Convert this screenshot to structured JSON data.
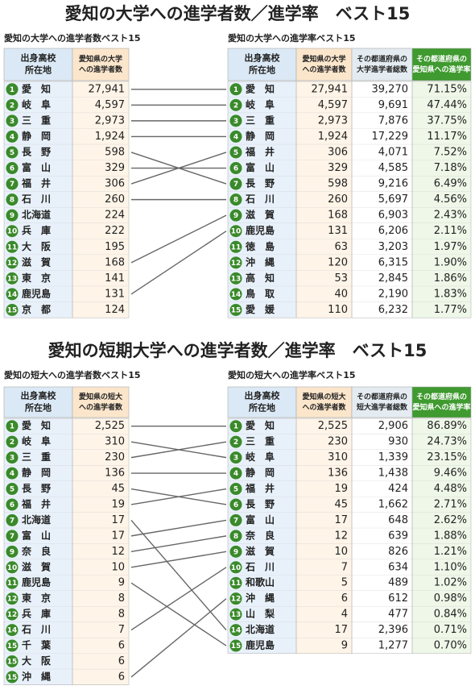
{
  "sections": [
    {
      "title": "愛知の大学への進学者数／進学率　ベスト15",
      "left": {
        "caption": "愛知の大学への進学者数ベスト15",
        "headers": [
          [
            "出身高校",
            "所在地"
          ],
          [
            "愛知県の大学",
            "への進学者数"
          ]
        ],
        "rows": [
          [
            "1",
            "愛　知",
            "27,941"
          ],
          [
            "2",
            "岐　阜",
            "4,597"
          ],
          [
            "3",
            "三　重",
            "2,973"
          ],
          [
            "4",
            "静　岡",
            "1,924"
          ],
          [
            "5",
            "長　野",
            "598"
          ],
          [
            "6",
            "富　山",
            "329"
          ],
          [
            "7",
            "福　井",
            "306"
          ],
          [
            "8",
            "石　川",
            "260"
          ],
          [
            "9",
            "北海道",
            "224"
          ],
          [
            "10",
            "兵　庫",
            "222"
          ],
          [
            "11",
            "大　阪",
            "195"
          ],
          [
            "12",
            "滋　賀",
            "168"
          ],
          [
            "13",
            "東　京",
            "141"
          ],
          [
            "14",
            "鹿児島",
            "131"
          ],
          [
            "15",
            "京　都",
            "124"
          ]
        ]
      },
      "right": {
        "caption": "愛知の大学への進学率ベスト15",
        "headers": [
          [
            "出身高校",
            "所在地"
          ],
          [
            "愛知県の大学",
            "への進学者数"
          ],
          [
            "その都道府県の",
            "大学進学者総数"
          ],
          [
            "その都道府県の",
            "愛知県への進学率"
          ]
        ],
        "rows": [
          [
            "1",
            "愛　知",
            "27,941",
            "39,270",
            "71.15%"
          ],
          [
            "2",
            "岐　阜",
            "4,597",
            "9,691",
            "47.44%"
          ],
          [
            "3",
            "三　重",
            "2,973",
            "7,876",
            "37.75%"
          ],
          [
            "4",
            "静　岡",
            "1,924",
            "17,229",
            "11.17%"
          ],
          [
            "5",
            "福　井",
            "306",
            "4,071",
            "7.52%"
          ],
          [
            "6",
            "富　山",
            "329",
            "4,585",
            "7.18%"
          ],
          [
            "7",
            "長　野",
            "598",
            "9,216",
            "6.49%"
          ],
          [
            "8",
            "石　川",
            "260",
            "5,697",
            "4.56%"
          ],
          [
            "9",
            "滋　賀",
            "168",
            "6,903",
            "2.43%"
          ],
          [
            "10",
            "鹿児島",
            "131",
            "6,206",
            "2.11%"
          ],
          [
            "11",
            "徳　島",
            "63",
            "3,203",
            "1.97%"
          ],
          [
            "12",
            "沖　縄",
            "120",
            "6,315",
            "1.90%"
          ],
          [
            "13",
            "高　知",
            "53",
            "2,845",
            "1.86%"
          ],
          [
            "14",
            "鳥　取",
            "40",
            "2,190",
            "1.83%"
          ],
          [
            "15",
            "愛　媛",
            "110",
            "6,232",
            "1.77%"
          ]
        ]
      }
    },
    {
      "title": "愛知の短期大学への進学者数／進学率　ベスト15",
      "left": {
        "caption": "愛知の短大への進学者数ベスト15",
        "headers": [
          [
            "出身高校",
            "所在地"
          ],
          [
            "愛知県の短大",
            "への進学者数"
          ]
        ],
        "rows": [
          [
            "1",
            "愛　知",
            "2,525"
          ],
          [
            "2",
            "岐　阜",
            "310"
          ],
          [
            "3",
            "三　重",
            "230"
          ],
          [
            "4",
            "静　岡",
            "136"
          ],
          [
            "5",
            "長　野",
            "45"
          ],
          [
            "6",
            "福　井",
            "19"
          ],
          [
            "7",
            "北海道",
            "17"
          ],
          [
            "7",
            "富　山",
            "17"
          ],
          [
            "9",
            "奈　良",
            "12"
          ],
          [
            "10",
            "滋　賀",
            "10"
          ],
          [
            "11",
            "鹿児島",
            "9"
          ],
          [
            "12",
            "東　京",
            "8"
          ],
          [
            "12",
            "兵　庫",
            "8"
          ],
          [
            "14",
            "石　川",
            "7"
          ],
          [
            "15",
            "千　葉",
            "6"
          ],
          [
            "15",
            "大　阪",
            "6"
          ],
          [
            "15",
            "沖　縄",
            "6"
          ]
        ]
      },
      "right": {
        "caption": "愛知の短大への進学率ベスト15",
        "headers": [
          [
            "出身高校",
            "所在地"
          ],
          [
            "愛知県の短大",
            "への進学者数"
          ],
          [
            "その都道府県の",
            "短大進学者総数"
          ],
          [
            "その都道府県の",
            "愛知県への進学率"
          ]
        ],
        "rows": [
          [
            "1",
            "愛　知",
            "2,525",
            "2,906",
            "86.89%"
          ],
          [
            "2",
            "三　重",
            "230",
            "930",
            "24.73%"
          ],
          [
            "3",
            "岐　阜",
            "310",
            "1,339",
            "23.15%"
          ],
          [
            "4",
            "静　岡",
            "136",
            "1,438",
            "9.46%"
          ],
          [
            "5",
            "福　井",
            "19",
            "424",
            "4.48%"
          ],
          [
            "6",
            "長　野",
            "45",
            "1,662",
            "2.71%"
          ],
          [
            "7",
            "富　山",
            "17",
            "648",
            "2.62%"
          ],
          [
            "8",
            "奈　良",
            "12",
            "639",
            "1.88%"
          ],
          [
            "9",
            "滋　賀",
            "10",
            "826",
            "1.21%"
          ],
          [
            "10",
            "石　川",
            "7",
            "634",
            "1.10%"
          ],
          [
            "11",
            "和歌山",
            "5",
            "489",
            "1.02%"
          ],
          [
            "12",
            "沖　縄",
            "6",
            "612",
            "0.98%"
          ],
          [
            "13",
            "山　梨",
            "4",
            "477",
            "0.84%"
          ],
          [
            "14",
            "北海道",
            "17",
            "2,396",
            "0.71%"
          ],
          [
            "15",
            "鹿児島",
            "9",
            "1,277",
            "0.70%"
          ]
        ]
      }
    }
  ]
}
